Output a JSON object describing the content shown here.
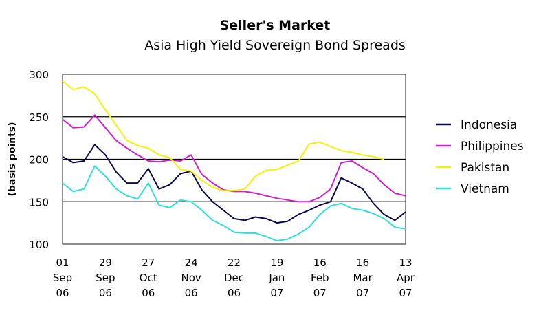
{
  "chart_data": {
    "type": "line",
    "title": "Seller's Market",
    "subtitle": "Asia High Yield Sovereign Bond Spreads",
    "ylabel": "(basis points)",
    "xlabel": "",
    "ylim": [
      100,
      300
    ],
    "yticks": [
      100,
      150,
      200,
      250,
      300
    ],
    "grid": "horizontal lines at 150, 200, 250",
    "legend_position": "right",
    "x_ticks": [
      {
        "line1": "01",
        "line2": "Sep",
        "line3": "06"
      },
      {
        "line1": "29",
        "line2": "Sep",
        "line3": "06"
      },
      {
        "line1": "27",
        "line2": "Oct",
        "line3": "06"
      },
      {
        "line1": "24",
        "line2": "Nov",
        "line3": "06"
      },
      {
        "line1": "22",
        "line2": "Dec",
        "line3": "06"
      },
      {
        "line1": "19",
        "line2": "Jan",
        "line3": "07"
      },
      {
        "line1": "16",
        "line2": "Feb",
        "line3": "07"
      },
      {
        "line1": "16",
        "line2": "Mar",
        "line3": "07"
      },
      {
        "line1": "13",
        "line2": "Apr",
        "line3": "07"
      }
    ],
    "x_dates": [
      "2006-09-01",
      "2006-09-08",
      "2006-09-15",
      "2006-09-22",
      "2006-09-29",
      "2006-10-06",
      "2006-10-13",
      "2006-10-20",
      "2006-10-27",
      "2006-11-03",
      "2006-11-10",
      "2006-11-17",
      "2006-11-24",
      "2006-12-01",
      "2006-12-08",
      "2006-12-15",
      "2006-12-22",
      "2006-12-29",
      "2007-01-05",
      "2007-01-12",
      "2007-01-19",
      "2007-01-26",
      "2007-02-02",
      "2007-02-09",
      "2007-02-16",
      "2007-02-23",
      "2007-03-02",
      "2007-03-09",
      "2007-03-16",
      "2007-03-23",
      "2007-03-30",
      "2007-04-06",
      "2007-04-13"
    ],
    "series": [
      {
        "name": "Indonesia",
        "color": "#0a0a4a",
        "values": [
          203,
          196,
          198,
          217,
          205,
          185,
          172,
          172,
          189,
          165,
          170,
          183,
          186,
          164,
          150,
          140,
          130,
          128,
          132,
          130,
          125,
          127,
          135,
          140,
          146,
          150,
          178,
          172,
          165,
          148,
          135,
          128,
          138
        ]
      },
      {
        "name": "Philippines",
        "color": "#cc22cc",
        "values": [
          247,
          237,
          238,
          252,
          237,
          222,
          213,
          205,
          198,
          197,
          199,
          198,
          205,
          182,
          172,
          164,
          162,
          162,
          160,
          157,
          154,
          152,
          150,
          150,
          155,
          165,
          196,
          198,
          190,
          183,
          170,
          160,
          157
        ]
      },
      {
        "name": "Pakistan",
        "color": "#f2f20a",
        "values": [
          292,
          282,
          285,
          277,
          258,
          240,
          222,
          216,
          213,
          205,
          202,
          188,
          186,
          175,
          167,
          163,
          163,
          165,
          180,
          187,
          188,
          193,
          198,
          218,
          220,
          215,
          210,
          208,
          205,
          203,
          200,
          null,
          null
        ]
      },
      {
        "name": "Vietnam",
        "color": "#33dddd",
        "values": [
          172,
          162,
          165,
          192,
          180,
          165,
          157,
          153,
          172,
          146,
          143,
          152,
          150,
          140,
          128,
          122,
          114,
          113,
          113,
          109,
          104,
          106,
          112,
          120,
          135,
          145,
          148,
          142,
          140,
          136,
          130,
          120,
          118
        ]
      }
    ]
  }
}
